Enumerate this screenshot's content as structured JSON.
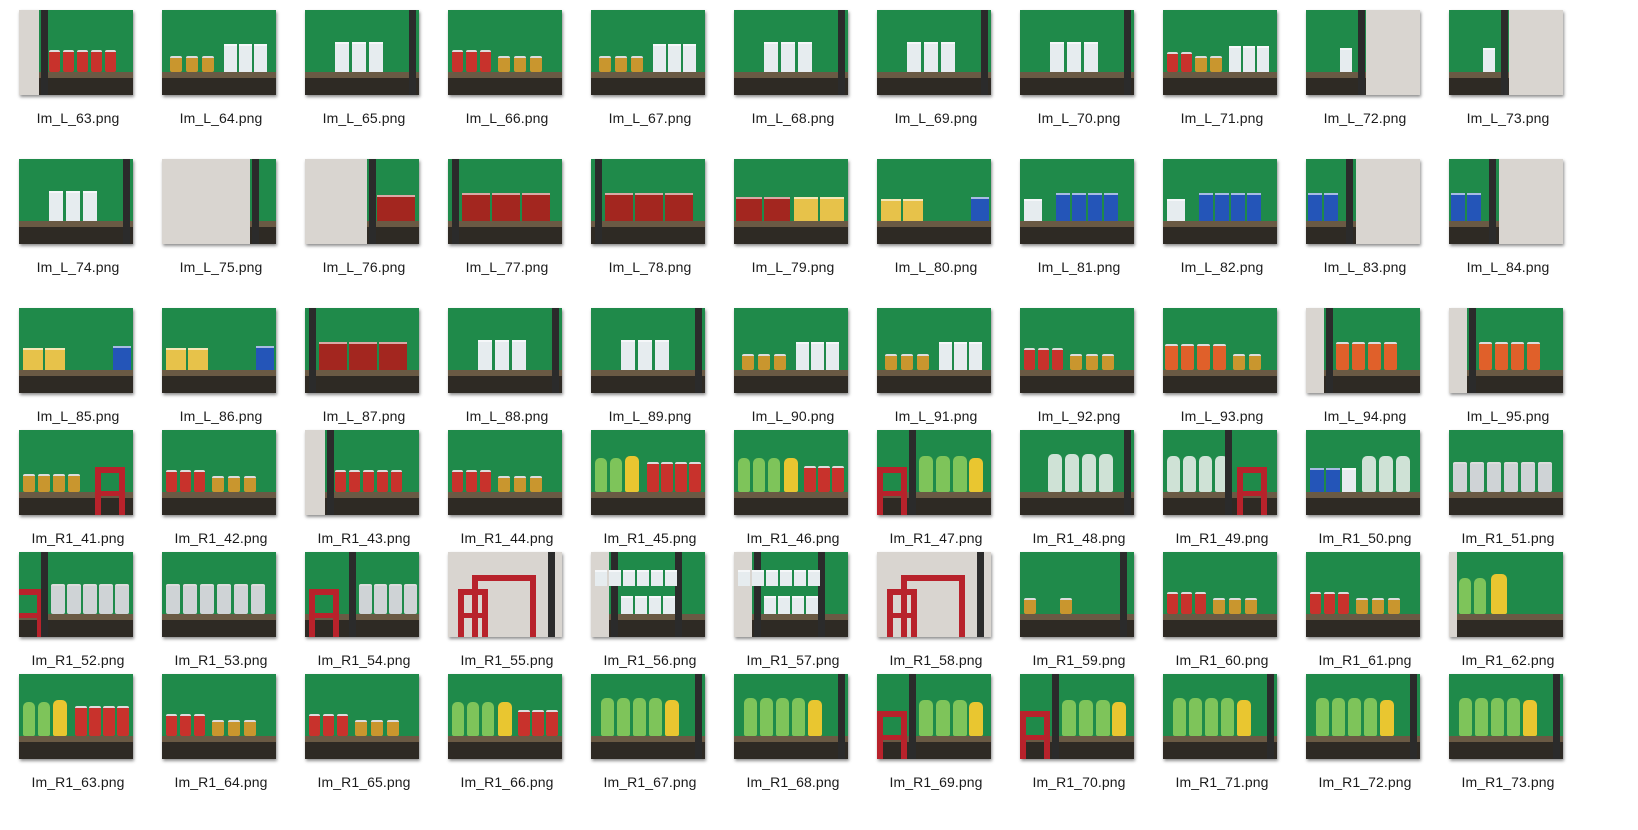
{
  "files": [
    "Im_L_63.png",
    "Im_L_64.png",
    "Im_L_65.png",
    "Im_L_66.png",
    "Im_L_67.png",
    "Im_L_68.png",
    "Im_L_69.png",
    "Im_L_70.png",
    "Im_L_71.png",
    "Im_L_72.png",
    "Im_L_73.png",
    "Im_L_74.png",
    "Im_L_75.png",
    "Im_L_76.png",
    "Im_L_77.png",
    "Im_L_78.png",
    "Im_L_79.png",
    "Im_L_80.png",
    "Im_L_81.png",
    "Im_L_82.png",
    "Im_L_83.png",
    "Im_L_84.png",
    "Im_L_85.png",
    "Im_L_86.png",
    "Im_L_87.png",
    "Im_L_88.png",
    "Im_L_89.png",
    "Im_L_90.png",
    "Im_L_91.png",
    "Im_L_92.png",
    "Im_L_93.png",
    "Im_L_94.png",
    "Im_L_95.png",
    "Im_R1_41.png",
    "Im_R1_42.png",
    "Im_R1_43.png",
    "Im_R1_44.png",
    "Im_R1_45.png",
    "Im_R1_46.png",
    "Im_R1_47.png",
    "Im_R1_48.png",
    "Im_R1_49.png",
    "Im_R1_50.png",
    "Im_R1_51.png",
    "Im_R1_52.png",
    "Im_R1_53.png",
    "Im_R1_54.png",
    "Im_R1_55.png",
    "Im_R1_56.png",
    "Im_R1_57.png",
    "Im_R1_58.png",
    "Im_R1_59.png",
    "Im_R1_60.png",
    "Im_R1_61.png",
    "Im_R1_62.png",
    "Im_R1_63.png",
    "Im_R1_64.png",
    "Im_R1_65.png",
    "Im_R1_66.png",
    "Im_R1_67.png",
    "Im_R1_68.png",
    "Im_R1_69.png",
    "Im_R1_70.png",
    "Im_R1_71.png",
    "Im_R1_72.png",
    "Im_R1_73.png"
  ],
  "thumb_scenes": [
    "cans-red",
    "cans-gold-boxes",
    "boxes-white",
    "cans-red-gold",
    "cans-gold-boxes",
    "boxes-white",
    "boxes-white",
    "boxes-white",
    "cans-red-boxes",
    "wall-right",
    "wall-right",
    "boxes-white",
    "wall-left",
    "chocopie-wall",
    "chocopie",
    "chocopie",
    "chocopie-yellow",
    "boxes-yellow-blue",
    "boxes-blue",
    "boxes-blue",
    "boxes-blue-wall",
    "boxes-blue-wall",
    "boxes-yellow-blue",
    "boxes-yellow-blue",
    "chocopie",
    "boxes-white",
    "boxes-white",
    "cans-gold-boxes",
    "cans-gold-boxes",
    "cans-red-gold",
    "cans-orange",
    "cans-orange-wall",
    "cans-orange-wall",
    "cans-gold-stool",
    "cans-red-gold",
    "cans-red",
    "cans-red-gold",
    "bottles-yellow-red",
    "bottles-green-red",
    "stool-bottles",
    "bottles-clear",
    "bottles-stool",
    "boxes-bottles",
    "cans-silver",
    "cans-silver-stool",
    "cans-silver",
    "stool-cans-silver",
    "stool-big",
    "shelf-floor",
    "shelf-floor",
    "stool-big",
    "cans-gold",
    "cans-red-gold",
    "cans-red-gold",
    "bottles-yellow",
    "bottles-yellow-red",
    "cans-red-gold",
    "cans-red-gold",
    "bottles-green-red",
    "bottles-green",
    "bottles-green",
    "stool-bottles",
    "stool-bottles",
    "bottles-green",
    "bottles-green",
    "bottles-green"
  ],
  "colors": {
    "green_screen": "#1f8a4a",
    "shelf_dark": "#2e2a24",
    "can_red": "#c8322c",
    "can_gold": "#c9962e",
    "can_orange": "#e0602a",
    "can_silver": "#cfd3d6",
    "box_white": "#e6ecef",
    "box_blue": "#2455b8",
    "box_yellow": "#e7c24a",
    "chocopie_red": "#a3261f",
    "bottle_green": "#7ec45a",
    "bottle_yellow": "#e9c630",
    "bottle_clear": "#cfe2d6",
    "stool_red": "#b8222b"
  }
}
